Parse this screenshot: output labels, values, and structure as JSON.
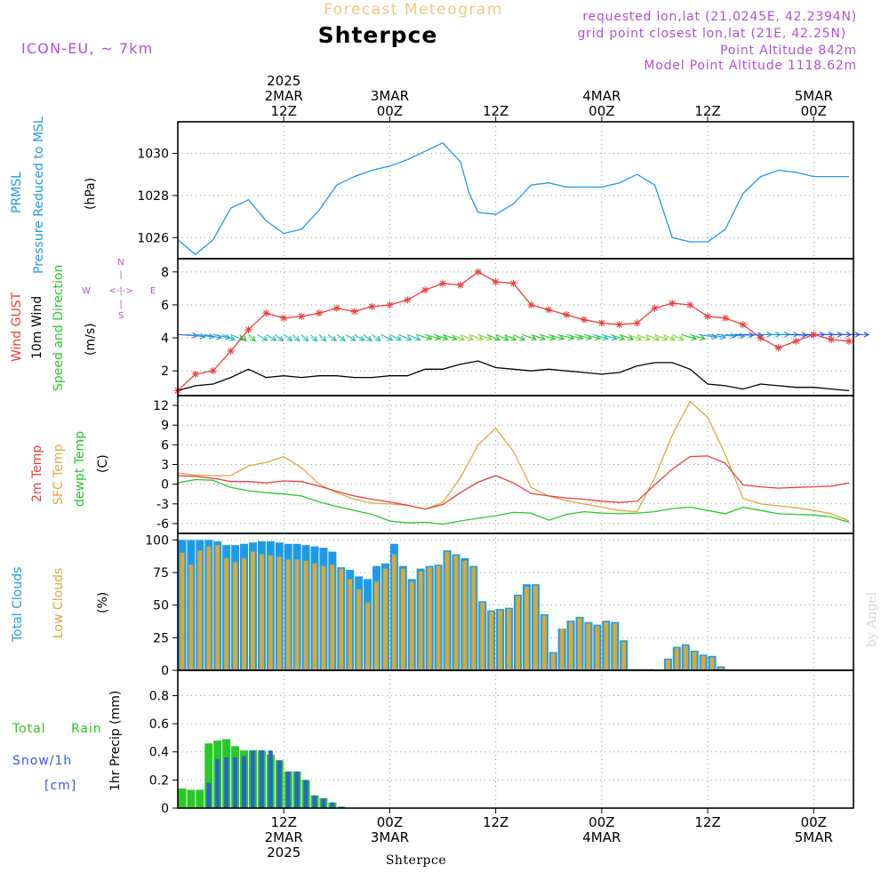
{
  "header": {
    "chart_title": "Forecast Meteogram",
    "location": "Shterpce",
    "model": "ICON-EU, ~ 7km",
    "requested": "requested lon,lat (21.0245E, 42.2394N)",
    "grid_point": "grid point closest lon,lat (21E, 42.25N)",
    "point_altitude": "Point Altitude 842m",
    "model_altitude": "Model Point Altitude 1118.62m",
    "footer_location": "Shterpce",
    "watermark": "by Angel"
  },
  "time_axis": {
    "top_ticks": [
      {
        "t": 12,
        "lines": [
          "2025",
          "2MAR",
          "12Z"
        ]
      },
      {
        "t": 24,
        "lines": [
          "3MAR",
          "00Z"
        ]
      },
      {
        "t": 36,
        "lines": [
          "12Z"
        ]
      },
      {
        "t": 48,
        "lines": [
          "4MAR",
          "00Z"
        ]
      },
      {
        "t": 60,
        "lines": [
          "12Z"
        ]
      },
      {
        "t": 72,
        "lines": [
          "5MAR",
          "00Z"
        ]
      }
    ],
    "bottom_ticks": [
      {
        "t": 12,
        "lines": [
          "12Z",
          "2MAR",
          "2025"
        ]
      },
      {
        "t": 24,
        "lines": [
          "00Z",
          "3MAR"
        ]
      },
      {
        "t": 36,
        "lines": [
          "12Z"
        ]
      },
      {
        "t": 48,
        "lines": [
          "00Z",
          "4MAR"
        ]
      },
      {
        "t": 60,
        "lines": [
          "12Z"
        ]
      },
      {
        "t": 72,
        "lines": [
          "00Z",
          "5MAR"
        ]
      }
    ]
  },
  "panels": {
    "pressure": {
      "label1": "PRMSL",
      "label2": "Pressure Reduced to MSL",
      "unit": "(hPa)",
      "ticks": [
        "1026",
        "1028",
        "1030"
      ]
    },
    "wind": {
      "label1": "Wind GUST",
      "label2": "10m Wind",
      "label3": "Speed and Direction",
      "unit": "(m/s)",
      "ticks": [
        "2",
        "4",
        "6",
        "8"
      ],
      "compass": {
        "n": "N",
        "s": "S",
        "w": "W",
        "e": "E",
        "ns": "|",
        "we": "<-|->"
      }
    },
    "temp": {
      "label1": "2m Temp",
      "label2": "SFC Temp",
      "label3": "dewpt Temp",
      "unit": "(C)",
      "ticks": [
        "-6",
        "-3",
        "0",
        "3",
        "6",
        "9",
        "12"
      ]
    },
    "clouds": {
      "label1": "Total Clouds",
      "label2": "Low Clouds",
      "unit": "(%)",
      "ticks": [
        "0",
        "25",
        "50",
        "75",
        "100"
      ]
    },
    "precip": {
      "label1": "Total",
      "label1b": "Rain",
      "label2": "Snow/1h",
      "label3": "[cm]",
      "unit": "1hr Precip (mm)",
      "ticks": [
        "0",
        "0.2",
        "0.4",
        "0.6",
        "0.8"
      ]
    }
  },
  "colors": {
    "pressure": "#1e9be6",
    "gust": "#e8403c",
    "wind": "#000000",
    "t2m": "#e8403c",
    "sfc": "#e0a840",
    "dew": "#28c828",
    "total_clouds": "#1e9be6",
    "low_clouds": "#d8a838",
    "rain": "#28c828",
    "snow": "#2a66c8",
    "header_title": "#f0c880",
    "header_info": "#b050d8",
    "watermark": "#d8d8d8"
  },
  "chart_data": {
    "type": "line",
    "x_unit": "hours from 2025-03-02 00Z",
    "pressure": {
      "ylim": [
        1025,
        1031.5
      ],
      "x": [
        0,
        2,
        4,
        6,
        8,
        10,
        12,
        14,
        16,
        18,
        20,
        22,
        24,
        26,
        28,
        30,
        32,
        33,
        34,
        36,
        38,
        40,
        42,
        44,
        46,
        48,
        50,
        52,
        54,
        56,
        58,
        60,
        62,
        64,
        66,
        68,
        70,
        72,
        74,
        76
      ],
      "y": [
        1025.9,
        1025.2,
        1025.9,
        1027.4,
        1027.8,
        1026.8,
        1026.2,
        1026.4,
        1027.3,
        1028.5,
        1028.9,
        1029.2,
        1029.4,
        1029.7,
        1030.1,
        1030.5,
        1029.6,
        1028.1,
        1027.2,
        1027.1,
        1027.6,
        1028.5,
        1028.6,
        1028.4,
        1028.4,
        1028.4,
        1028.6,
        1029.0,
        1028.5,
        1026.0,
        1025.8,
        1025.8,
        1026.4,
        1028.1,
        1028.9,
        1029.2,
        1029.1,
        1028.9,
        1028.9,
        1028.9
      ]
    },
    "wind": {
      "ylim": [
        0.5,
        8.8
      ],
      "x": [
        0,
        2,
        4,
        6,
        8,
        10,
        12,
        14,
        16,
        18,
        20,
        22,
        24,
        26,
        28,
        30,
        32,
        34,
        36,
        38,
        40,
        42,
        44,
        46,
        48,
        50,
        52,
        54,
        56,
        58,
        60,
        62,
        64,
        66,
        68,
        70,
        72,
        74,
        76
      ],
      "gust": [
        0.8,
        1.8,
        2.0,
        3.2,
        4.5,
        5.5,
        5.2,
        5.3,
        5.5,
        5.8,
        5.6,
        5.9,
        6.0,
        6.3,
        6.9,
        7.3,
        7.2,
        8.0,
        7.4,
        7.3,
        6.0,
        5.7,
        5.4,
        5.1,
        4.9,
        4.8,
        4.9,
        5.8,
        6.1,
        6.0,
        5.3,
        5.2,
        4.8,
        4.0,
        3.4,
        3.8,
        4.2,
        3.9,
        3.8
      ],
      "speed": [
        0.8,
        1.1,
        1.2,
        1.6,
        2.1,
        1.6,
        1.7,
        1.6,
        1.7,
        1.7,
        1.6,
        1.6,
        1.7,
        1.7,
        2.1,
        2.1,
        2.4,
        2.6,
        2.2,
        2.1,
        2.0,
        2.1,
        2.0,
        1.9,
        1.8,
        1.9,
        2.3,
        2.5,
        2.5,
        2.1,
        1.2,
        1.1,
        0.9,
        1.2,
        1.1,
        1.0,
        1.0,
        0.9,
        0.8
      ],
      "arrow_dir_deg": [
        260,
        250,
        240,
        220,
        200,
        210,
        205,
        200,
        200,
        205,
        210,
        205,
        215,
        220,
        230,
        225,
        220,
        225,
        220,
        215,
        225,
        230,
        235,
        235,
        230,
        225,
        220,
        220,
        215,
        230,
        245,
        255,
        265,
        270,
        270,
        265,
        270,
        270,
        270
      ],
      "arrow_level": 4.2
    },
    "temp": {
      "ylim": [
        -7.5,
        13.5
      ],
      "x": [
        0,
        2,
        4,
        6,
        8,
        10,
        12,
        14,
        16,
        18,
        20,
        22,
        24,
        26,
        28,
        30,
        32,
        34,
        36,
        38,
        40,
        42,
        44,
        46,
        48,
        50,
        52,
        54,
        56,
        58,
        60,
        62,
        64,
        66,
        68,
        70,
        72,
        74,
        76
      ],
      "t2m": [
        1.3,
        1.2,
        0.9,
        0.4,
        0.4,
        0.2,
        0.5,
        0.4,
        -0.3,
        -1.1,
        -1.8,
        -2.3,
        -2.7,
        -3.2,
        -3.8,
        -3.1,
        -1.3,
        0.3,
        1.3,
        0.2,
        -1.4,
        -1.8,
        -2.1,
        -2.3,
        -2.6,
        -2.8,
        -2.6,
        -0.1,
        2.3,
        4.2,
        4.3,
        3.2,
        -0.1,
        -0.4,
        -0.6,
        -0.5,
        -0.4,
        -0.3,
        0.2
      ],
      "sfc": [
        1.7,
        1.4,
        1.3,
        1.3,
        2.8,
        3.3,
        4.2,
        2.5,
        0.0,
        -1.3,
        -2.3,
        -2.9,
        -3.0,
        -3.2,
        -3.8,
        -2.8,
        1.0,
        6.0,
        8.5,
        5.0,
        -0.5,
        -1.8,
        -2.5,
        -3.0,
        -3.5,
        -4.0,
        -4.2,
        1.0,
        7.5,
        12.6,
        10.2,
        4.5,
        -2.2,
        -3.0,
        -3.3,
        -3.6,
        -4.0,
        -4.5,
        -5.6
      ],
      "dew": [
        0.2,
        0.7,
        0.6,
        -0.5,
        -1.0,
        -1.3,
        -1.5,
        -1.8,
        -2.7,
        -3.4,
        -4.0,
        -4.6,
        -5.6,
        -5.9,
        -5.8,
        -6.1,
        -5.6,
        -5.2,
        -4.8,
        -4.3,
        -4.4,
        -5.5,
        -4.6,
        -4.2,
        -4.4,
        -4.5,
        -4.4,
        -4.2,
        -3.7,
        -3.5,
        -4.0,
        -4.5,
        -3.5,
        -4.0,
        -4.5,
        -4.6,
        -4.7,
        -5.0,
        -5.8
      ]
    },
    "clouds": {
      "ylim": [
        0,
        105
      ],
      "x_start": 0.5,
      "x_step": 1,
      "total": [
        100,
        100,
        100,
        100,
        99,
        96,
        96,
        97,
        98,
        99,
        99,
        98,
        97,
        97,
        96,
        95,
        94,
        91,
        79,
        77,
        72,
        70,
        80,
        82,
        97,
        80,
        70,
        78,
        80,
        81,
        92,
        89,
        86,
        80,
        53,
        46,
        47,
        48,
        58,
        66,
        66,
        43,
        14,
        32,
        38,
        41,
        37,
        35,
        38,
        37,
        23,
        1,
        1,
        1,
        0,
        9,
        18,
        20,
        15,
        12,
        11,
        3,
        0,
        0,
        0,
        0,
        0,
        0,
        0,
        0,
        0,
        0,
        0,
        0,
        0,
        0
      ],
      "low": [
        90,
        81,
        92,
        95,
        96,
        86,
        83,
        86,
        91,
        89,
        88,
        87,
        85,
        85,
        84,
        82,
        80,
        81,
        78,
        70,
        62,
        52,
        68,
        78,
        89,
        78,
        68,
        76,
        79,
        80,
        91,
        88,
        84,
        79,
        52,
        45,
        46,
        47,
        57,
        64,
        65,
        42,
        13,
        32,
        37,
        40,
        36,
        34,
        37,
        36,
        22,
        1,
        1,
        1,
        0,
        8,
        17,
        19,
        14,
        11,
        10,
        2,
        0,
        0,
        0,
        0,
        0,
        0,
        0,
        0,
        0,
        0,
        0,
        0,
        0,
        0
      ]
    },
    "precip": {
      "ylim": [
        0,
        0.98
      ],
      "x_start": 0.5,
      "x_step": 1,
      "total": [
        0.14,
        0.13,
        0.13,
        0.46,
        0.48,
        0.49,
        0.44,
        0.41,
        0.41,
        0.41,
        0.38,
        0.34,
        0.26,
        0.26,
        0.2,
        0.09,
        0.07,
        0.04,
        0.01
      ],
      "snow": [
        0,
        0,
        0,
        0.18,
        0.35,
        0.36,
        0.36,
        0.37,
        0.41,
        0.41,
        0.41,
        0.34,
        0.26,
        0.26,
        0.2,
        0.09,
        0.07,
        0.04,
        0.01
      ]
    }
  }
}
